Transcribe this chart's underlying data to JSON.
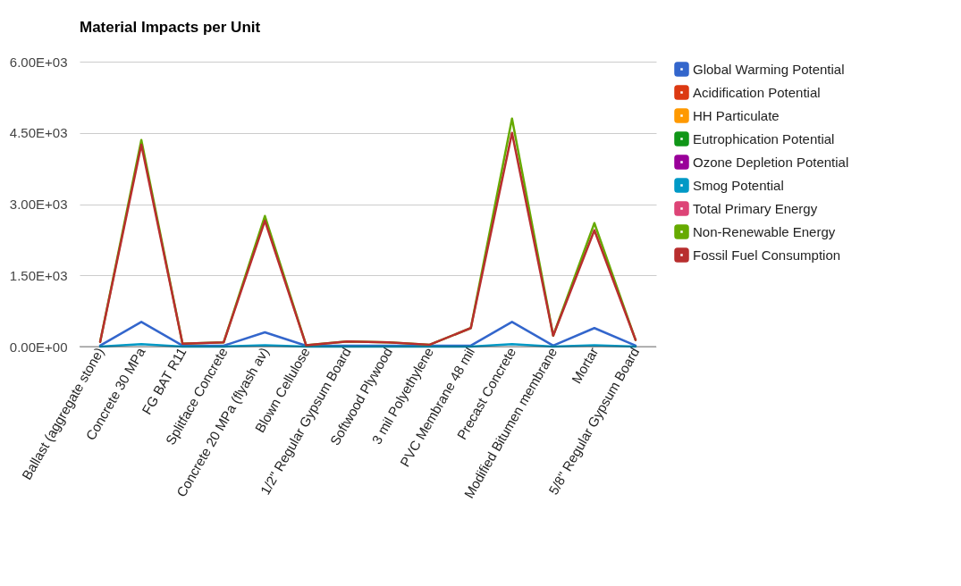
{
  "chart_data": {
    "type": "line",
    "title": "Material Impacts per Unit",
    "categories": [
      "Ballast (aggregate stone)",
      "Concrete 30 MPa",
      "FG BAT R11",
      "Splitface Concrete",
      "Concrete 20 MPa (flyash av)",
      "Blown Cellulose",
      "1/2\" Regular Gypsum Board",
      "Softwood Plywood",
      "3 mil Polyethylene",
      "PVC Membrane 48 mil",
      "Precast Concrete",
      "Modified Bitumen membrane",
      "Mortar",
      "5/8\" Regular Gypsum Board"
    ],
    "series": [
      {
        "name": "Global Warming Potential",
        "color": "#3366cc",
        "values": [
          20,
          520,
          20,
          20,
          300,
          20,
          20,
          20,
          20,
          20,
          520,
          20,
          390,
          20
        ]
      },
      {
        "name": "Acidification Potential",
        "color": "#dc3912",
        "values": [
          null,
          null,
          null,
          null,
          null,
          null,
          null,
          null,
          null,
          null,
          null,
          null,
          null,
          null
        ]
      },
      {
        "name": "HH Particulate",
        "color": "#ff9900",
        "values": [
          null,
          null,
          null,
          null,
          null,
          null,
          null,
          null,
          null,
          null,
          null,
          null,
          null,
          null
        ]
      },
      {
        "name": "Eutrophication Potential",
        "color": "#109618",
        "values": [
          null,
          null,
          null,
          null,
          null,
          null,
          null,
          null,
          null,
          null,
          null,
          null,
          null,
          null
        ]
      },
      {
        "name": "Ozone Depletion Potential",
        "color": "#990099",
        "values": [
          null,
          null,
          null,
          null,
          null,
          null,
          null,
          null,
          null,
          null,
          null,
          null,
          null,
          null
        ]
      },
      {
        "name": "Smog Potential",
        "color": "#0099c6",
        "values": [
          0,
          50,
          0,
          0,
          30,
          0,
          0,
          0,
          0,
          0,
          50,
          0,
          30,
          0
        ]
      },
      {
        "name": "Total Primary Energy",
        "color": "#dd4477",
        "values": [
          null,
          null,
          null,
          null,
          null,
          null,
          null,
          null,
          null,
          null,
          null,
          null,
          null,
          null
        ]
      },
      {
        "name": "Non-Renewable Energy",
        "color": "#66aa00",
        "values": [
          100,
          4350,
          60,
          90,
          2750,
          30,
          110,
          90,
          40,
          390,
          4800,
          230,
          2600,
          140
        ]
      },
      {
        "name": "Fossil Fuel Consumption",
        "color": "#b82e2e",
        "values": [
          100,
          4250,
          60,
          90,
          2650,
          30,
          110,
          90,
          40,
          390,
          4500,
          230,
          2450,
          140
        ]
      }
    ],
    "ylim": [
      0,
      6000
    ],
    "yticks": [
      {
        "value": 0,
        "label": "0.00E+00"
      },
      {
        "value": 1500,
        "label": "1.50E+03"
      },
      {
        "value": 3000,
        "label": "3.00E+03"
      },
      {
        "value": 4500,
        "label": "4.50E+03"
      },
      {
        "value": 6000,
        "label": "6.00E+03"
      }
    ],
    "grid": "y",
    "legend": "right",
    "marker": "none",
    "line_style": "solid"
  }
}
